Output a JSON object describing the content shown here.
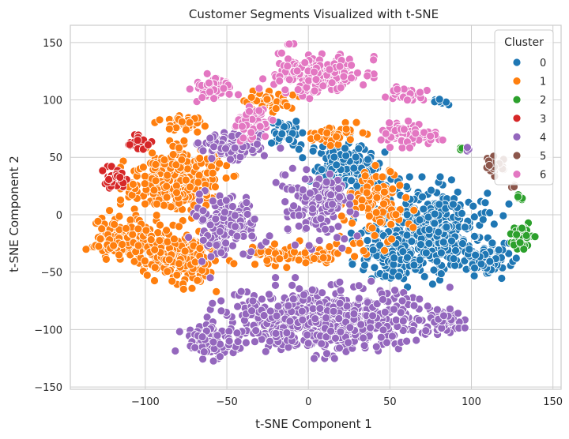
{
  "chart_data": {
    "type": "scatter",
    "title": "Customer Segments Visualized with t-SNE",
    "xlabel": "t-SNE Component 1",
    "ylabel": "t-SNE Component 2",
    "xlim": [
      -146,
      155
    ],
    "ylim": [
      -152,
      165
    ],
    "xticks": [
      -100,
      -50,
      0,
      50,
      100,
      150
    ],
    "yticks": [
      -150,
      -100,
      -50,
      0,
      50,
      100,
      150
    ],
    "xtick_labels": [
      "−100",
      "−50",
      "0",
      "50",
      "100",
      "150"
    ],
    "ytick_labels": [
      "−150",
      "−100",
      "−50",
      "0",
      "50",
      "100",
      "150"
    ],
    "grid": true,
    "legend": {
      "title": "Cluster",
      "placement": "top-right"
    },
    "series": [
      {
        "name": "0",
        "color": "#1f77b4",
        "regions": [
          {
            "center": [
              22,
              40
            ],
            "spread": [
              16,
              18
            ],
            "count": 170
          },
          {
            "center": [
              75,
              -15
            ],
            "spread": [
              30,
              30
            ],
            "count": 420
          },
          {
            "center": [
              50,
              -35
            ],
            "spread": [
              15,
              15
            ],
            "count": 120
          },
          {
            "center": [
              -12,
              72
            ],
            "spread": [
              9,
              10
            ],
            "count": 45
          },
          {
            "center": [
              110,
              -40
            ],
            "spread": [
              12,
              10
            ],
            "count": 80
          },
          {
            "center": [
              80,
              98
            ],
            "spread": [
              5,
              4
            ],
            "count": 8
          }
        ]
      },
      {
        "name": "1",
        "color": "#ff7f0e",
        "regions": [
          {
            "center": [
              -80,
              30
            ],
            "spread": [
              22,
              22
            ],
            "count": 300
          },
          {
            "center": [
              -115,
              -20
            ],
            "spread": [
              15,
              15
            ],
            "count": 150
          },
          {
            "center": [
              -80,
              -35
            ],
            "spread": [
              20,
              20
            ],
            "count": 200
          },
          {
            "center": [
              -75,
              80
            ],
            "spread": [
              12,
              5
            ],
            "count": 45
          },
          {
            "center": [
              -25,
              100
            ],
            "spread": [
              12,
              7
            ],
            "count": 45
          },
          {
            "center": [
              -10,
              -35
            ],
            "spread": [
              30,
              8
            ],
            "count": 80
          },
          {
            "center": [
              40,
              10
            ],
            "spread": [
              18,
              28
            ],
            "count": 110
          },
          {
            "center": [
              15,
              70
            ],
            "spread": [
              15,
              8
            ],
            "count": 40
          }
        ]
      },
      {
        "name": "2",
        "color": "#2ca02c",
        "regions": [
          {
            "center": [
              131,
              -18
            ],
            "spread": [
              5,
              9
            ],
            "count": 60
          },
          {
            "center": [
              130,
              15
            ],
            "spread": [
              4,
              2
            ],
            "count": 5
          },
          {
            "center": [
              96,
              58
            ],
            "spread": [
              3,
              2
            ],
            "count": 3
          }
        ]
      },
      {
        "name": "3",
        "color": "#d62728",
        "regions": [
          {
            "center": [
              -104,
              63
            ],
            "spread": [
              5,
              5
            ],
            "count": 25
          },
          {
            "center": [
              -120,
              32
            ],
            "spread": [
              6,
              7
            ],
            "count": 40
          }
        ]
      },
      {
        "name": "4",
        "color": "#9467bd",
        "regions": [
          {
            "center": [
              10,
              -90
            ],
            "spread": [
              48,
              22
            ],
            "count": 650
          },
          {
            "center": [
              -50,
              -10
            ],
            "spread": [
              15,
              22
            ],
            "count": 180
          },
          {
            "center": [
              5,
              10
            ],
            "spread": [
              18,
              25
            ],
            "count": 160
          },
          {
            "center": [
              -45,
              60
            ],
            "spread": [
              18,
              10
            ],
            "count": 120
          },
          {
            "center": [
              -60,
              -110
            ],
            "spread": [
              14,
              12
            ],
            "count": 80
          },
          {
            "center": [
              80,
              -90
            ],
            "spread": [
              10,
              10
            ],
            "count": 60
          },
          {
            "center": [
              97,
              57
            ],
            "spread": [
              2,
              2
            ],
            "count": 3
          }
        ]
      },
      {
        "name": "5",
        "color": "#8c564b",
        "regions": [
          {
            "center": [
              114,
              43
            ],
            "spread": [
              5,
              6
            ],
            "count": 30
          },
          {
            "center": [
              126,
              25
            ],
            "spread": [
              2,
              2
            ],
            "count": 3
          }
        ]
      },
      {
        "name": "6",
        "color": "#e377c2",
        "regions": [
          {
            "center": [
              5,
              122
            ],
            "spread": [
              22,
              13
            ],
            "count": 220
          },
          {
            "center": [
              -57,
              110
            ],
            "spread": [
              10,
              8
            ],
            "count": 55
          },
          {
            "center": [
              -35,
              80
            ],
            "spread": [
              10,
              10
            ],
            "count": 50
          },
          {
            "center": [
              60,
              70
            ],
            "spread": [
              14,
              8
            ],
            "count": 85
          },
          {
            "center": [
              60,
              105
            ],
            "spread": [
              8,
              6
            ],
            "count": 30
          },
          {
            "center": [
              -10,
              150
            ],
            "spread": [
              2,
              1
            ],
            "count": 3
          }
        ]
      }
    ]
  }
}
